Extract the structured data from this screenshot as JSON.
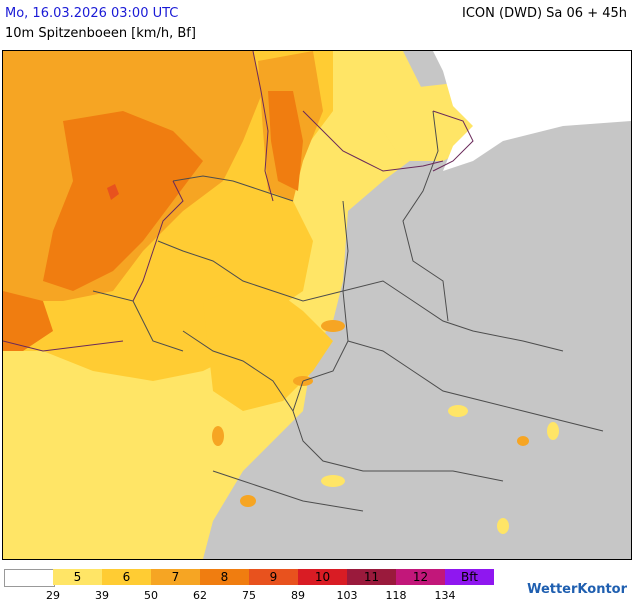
{
  "header": {
    "date": "Mo, 16.03.2026 03:00 UTC",
    "model": "ICON (DWD) Sa 06 + 45h",
    "parameter": "10m Spitzenboeen [km/h, Bf]"
  },
  "legend": {
    "swatches": [
      {
        "label": "",
        "color": "#ffffff"
      },
      {
        "label": "5",
        "color": "#ffe566"
      },
      {
        "label": "6",
        "color": "#ffcc33"
      },
      {
        "label": "7",
        "color": "#f6a523"
      },
      {
        "label": "8",
        "color": "#f07d10"
      },
      {
        "label": "9",
        "color": "#e8521e"
      },
      {
        "label": "10",
        "color": "#d91c24"
      },
      {
        "label": "11",
        "color": "#9a1a3c"
      },
      {
        "label": "12",
        "color": "#c2177a"
      },
      {
        "label": "Bft",
        "color": "#8f17f0"
      }
    ],
    "ticks": [
      "29",
      "39",
      "50",
      "62",
      "75",
      "89",
      "103",
      "118",
      "134"
    ]
  },
  "brand": {
    "name": "WetterKontor"
  },
  "colors": {
    "land": "#c6c6c6",
    "border": "#4d4d4d",
    "header_date": "#1a1ad6"
  }
}
